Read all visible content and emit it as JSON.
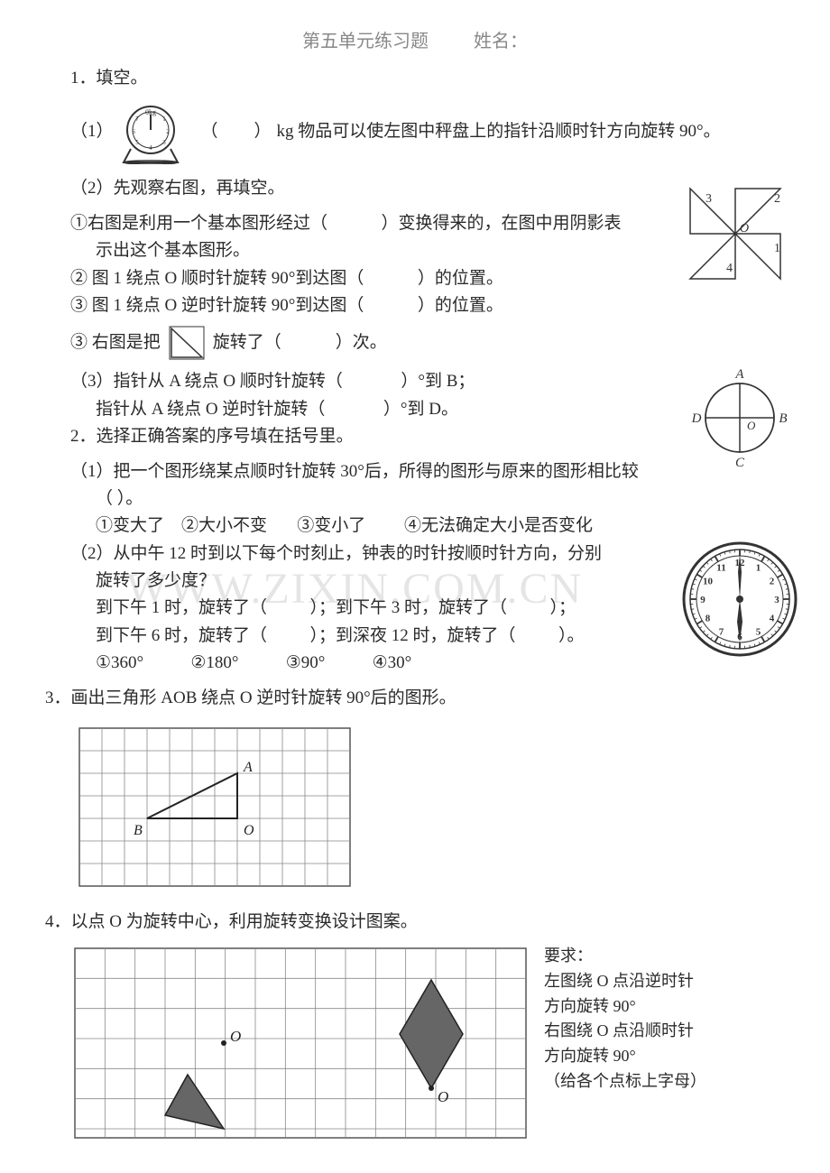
{
  "header": {
    "title": "第五单元练习题",
    "name_label": "姓名："
  },
  "q1": {
    "label": "1．填空。",
    "p1": {
      "prefix": "（1）",
      "blank_open": "（",
      "blank_close": "）",
      "text": "kg 物品可以使左图中秤盘上的指针沿顺时针方向旋转 90°。"
    },
    "p2": {
      "intro": "（2）先观察右图，再填空。",
      "l1a": "①右图是利用一个基本图形经过（",
      "l1b": "）变换得来的，在图中用阴影表",
      "l1c": "示出这个基本图形。",
      "l2a": "② 图 1 绕点 O 顺时针旋转 90°到达图（",
      "l2b": "）的位置。",
      "l3a": "③ 图 1 绕点 O 逆时针旋转 90°到达图（",
      "l3b": "）的位置。",
      "l4a": "③ 右图是把",
      "l4b": "旋转了（",
      "l4c": "）次。",
      "windmill": {
        "n1": "1",
        "n2": "2",
        "n3": "3",
        "n4": "4",
        "O": "O"
      }
    },
    "p3": {
      "l1a": "（3）指针从 A 绕点 O 顺时针旋转（",
      "l1b": "）°到 B；",
      "l2a": "指针从 A 绕点 O 逆时针旋转（",
      "l2b": "）°到 D。",
      "circle": {
        "A": "A",
        "B": "B",
        "C": "C",
        "D": "D",
        "O": "O"
      }
    }
  },
  "q2": {
    "label": "2．选择正确答案的序号填在括号里。",
    "p1": {
      "text": "（1）把一个图形绕某点顺时针旋转 30°后，所得的图形与原来的图形相比较",
      "blank": "（          ）。",
      "opts": "①变大了    ②大小不变       ③变小了         ④无法确定大小是否变化"
    },
    "p2": {
      "l1": "（2）从中午 12 时到以下每个时刻止，钟表的时针按顺时针方向，分别",
      "l2": "旋转了多少度？",
      "l3": "到下午 1 时，旋转了（          ）；到下午 3 时，旋转了（          ）；",
      "l4": "到下午 6 时，旋转了（          ）；到深夜 12 时，旋转了（          ）。",
      "opts": "①360°           ②180°           ③90°           ④30°"
    }
  },
  "q3": {
    "label": "3．画出三角形 AOB 绕点 O 逆时针旋转 90°后的图形。",
    "grid": {
      "A": "A",
      "B": "B",
      "O": "O"
    }
  },
  "q4": {
    "label": "4．以点 O 为旋转中心，利用旋转变换设计图案。",
    "grid": {
      "O1": "O",
      "O2": "O"
    },
    "req": {
      "title": "要求：",
      "l1": "左图绕 O 点沿逆时针",
      "l2": "方向旋转 90°",
      "l3": "右图绕 O 点沿顺时针",
      "l4": "方向旋转 90°",
      "l5": "（给各个点标上字母）"
    }
  },
  "watermark": "WWW.ZIXIN.COM.CN",
  "clock_numbers": [
    "12",
    "1",
    "2",
    "3",
    "4",
    "5",
    "6",
    "7",
    "8",
    "9",
    "10",
    "11"
  ]
}
